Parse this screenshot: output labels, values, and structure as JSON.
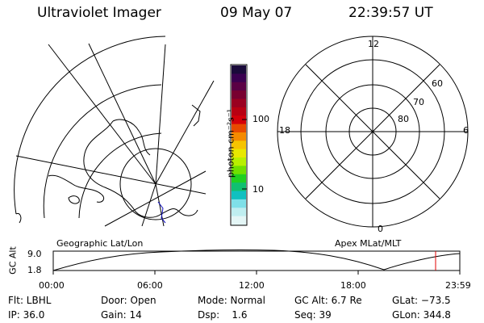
{
  "header": {
    "instrument": "Ultraviolet Imager",
    "date": "09 May 07",
    "time": "22:39:57 UT"
  },
  "colorbar": {
    "unit_label": "photon cm⁻²s⁻¹",
    "tick_labels": [
      "100",
      "10"
    ],
    "colors": [
      "#1a0a3a",
      "#3a0050",
      "#5a0044",
      "#780030",
      "#9a0020",
      "#b80012",
      "#d4000a",
      "#e84a00",
      "#f48a00",
      "#f6c400",
      "#e8e800",
      "#b8f000",
      "#70e000",
      "#20d020",
      "#10c070",
      "#10c0c0",
      "#7fe0e8",
      "#bfeef0",
      "#e4f6f6"
    ]
  },
  "geo_panel": {
    "label": "Geographic Lat/Lon"
  },
  "polar_panel": {
    "label": "Apex MLat/MLT",
    "mlt_labels": [
      "12",
      "18",
      "6",
      "0"
    ],
    "lat_labels": [
      "60",
      "70",
      "80"
    ]
  },
  "timeline": {
    "axis_label": "GC Alt",
    "y_ticks": [
      "9.0",
      "1.8"
    ],
    "x_ticks": [
      "00:00",
      "06:00",
      "12:00",
      "18:00",
      "23:59"
    ],
    "current_time_marker_color": "#e00000"
  },
  "footer": {
    "flt": "Flt: LBHL",
    "ip": "IP: 36.0",
    "door": "Door: Open",
    "gain": "Gain: 14",
    "mode": "Mode: Normal",
    "dsp": "Dsp:    1.6",
    "gc_alt": "GC Alt: 6.7 Re",
    "seq": "Seq: 39",
    "glat": "GLat: −73.5",
    "glon": "GLon: 344.8"
  }
}
